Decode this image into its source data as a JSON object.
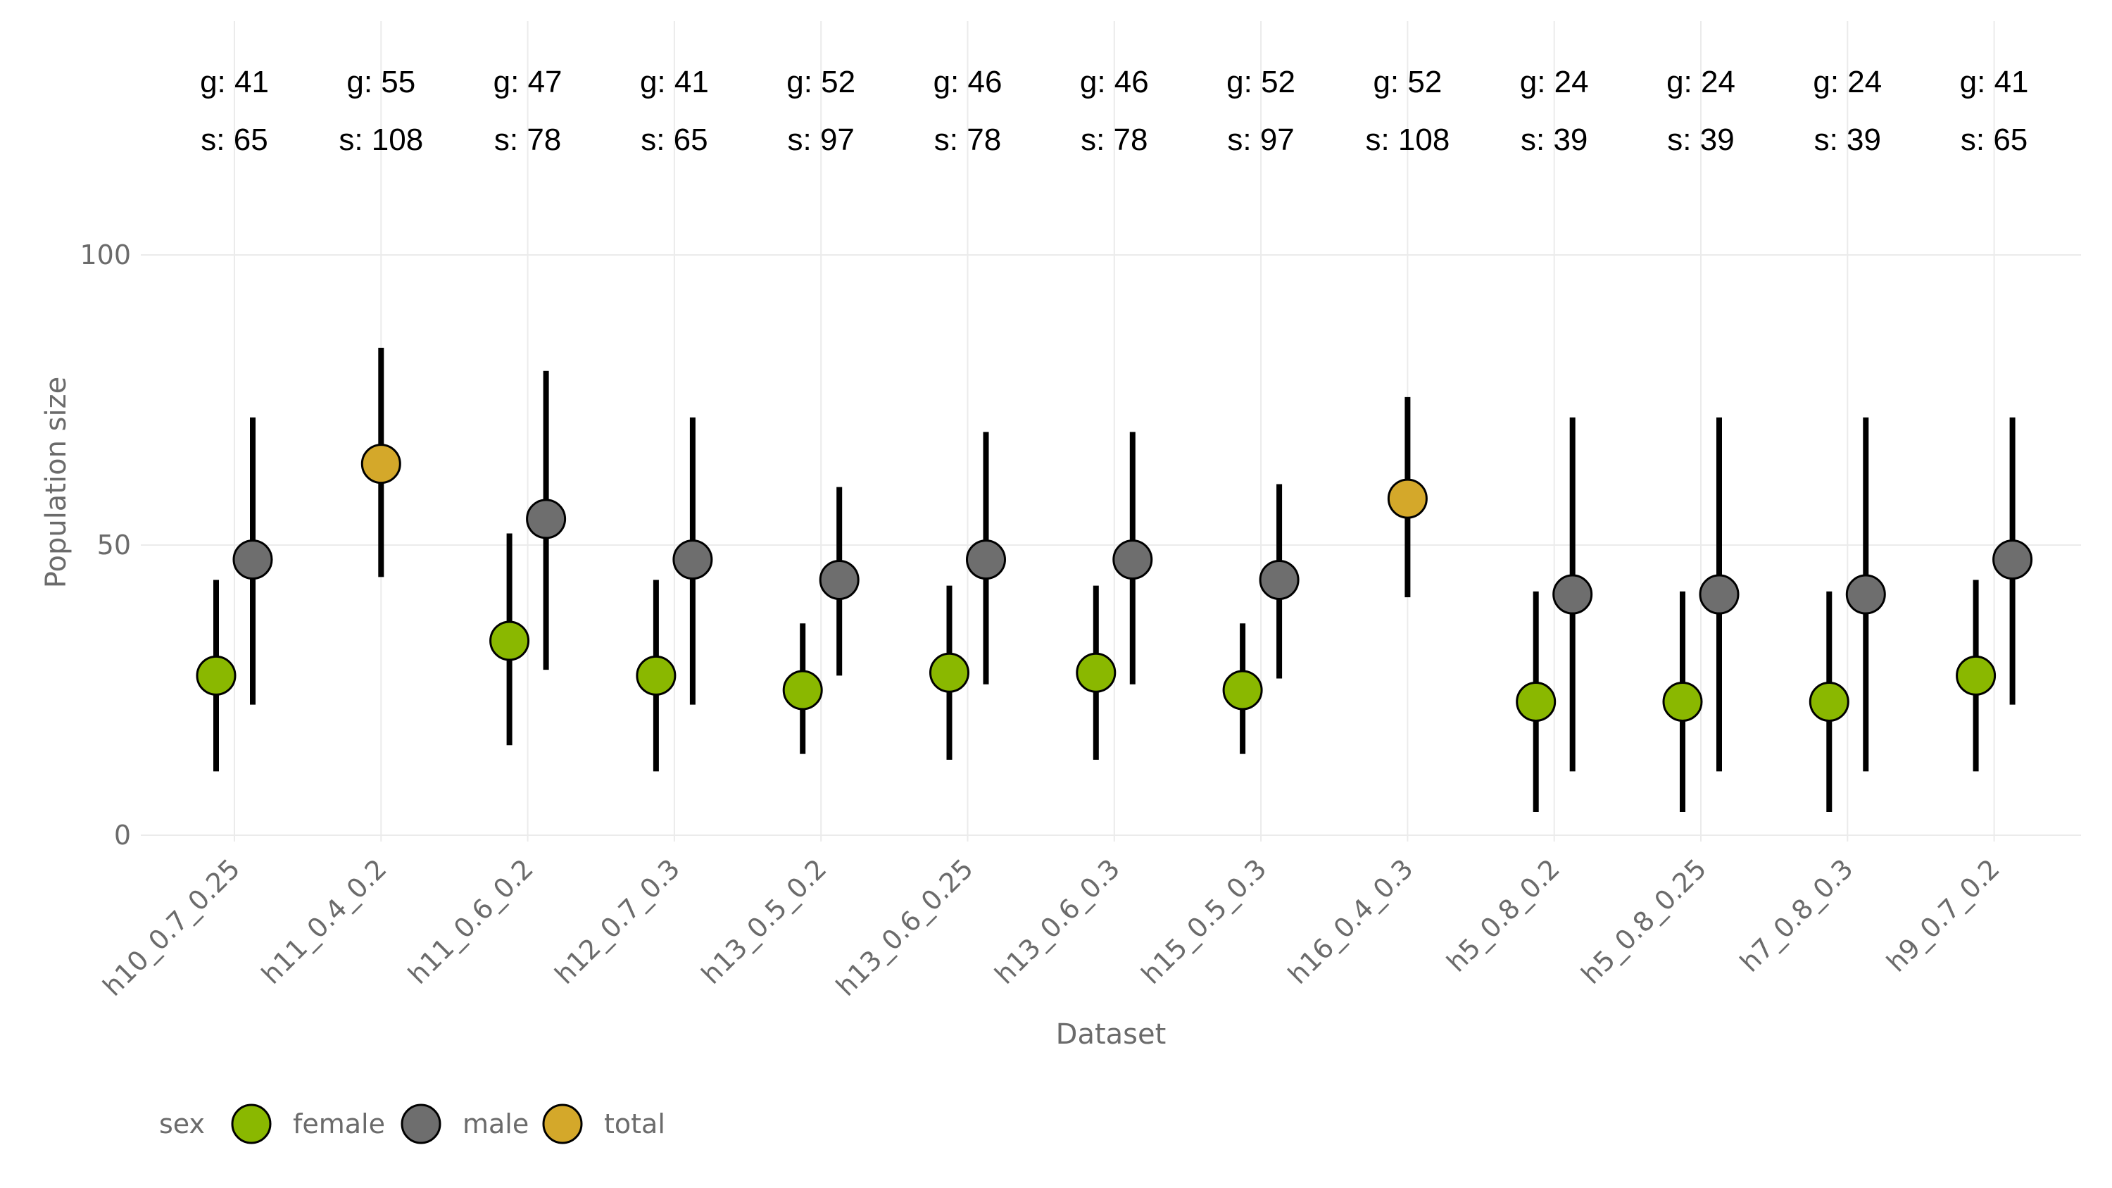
{
  "chart_data": {
    "type": "scatter",
    "title": "",
    "xlabel": "Dataset",
    "ylabel": "Population size",
    "ylim": [
      0,
      100
    ],
    "yticks": [
      0,
      50,
      100
    ],
    "grid": true,
    "legend": {
      "position": "bottom-left",
      "title": "sex",
      "entries": [
        {
          "name": "female",
          "color": "#8ab800"
        },
        {
          "name": "male",
          "color": "#6e6e6e"
        },
        {
          "name": "total",
          "color": "#d4a82a"
        }
      ]
    },
    "categories": [
      "h10_0.7_0.25",
      "h11_0.4_0.2",
      "h11_0.6_0.2",
      "h12_0.7_0.3",
      "h13_0.5_0.2",
      "h13_0.6_0.25",
      "h13_0.6_0.3",
      "h15_0.5_0.3",
      "h16_0.4_0.3",
      "h5_0.8_0.2",
      "h5_0.8_0.25",
      "h7_0.8_0.3",
      "h9_0.7_0.2"
    ],
    "annotations_g": [
      "g: 41",
      "g: 55",
      "g: 47",
      "g: 41",
      "g: 52",
      "g: 46",
      "g: 46",
      "g: 52",
      "g: 52",
      "g: 24",
      "g: 24",
      "g: 24",
      "g: 41"
    ],
    "annotations_s": [
      "s: 65",
      "s: 108",
      "s: 78",
      "s: 65",
      "s: 97",
      "s: 78",
      "s: 78",
      "s: 97",
      "s: 108",
      "s: 39",
      "s: 39",
      "s: 39",
      "s: 65"
    ],
    "series": [
      {
        "name": "female",
        "color": "#8ab800",
        "values": [
          27.5,
          null,
          33.5,
          27.5,
          25,
          28,
          28,
          25,
          null,
          23,
          23,
          23,
          27.5
        ],
        "lower": [
          11,
          null,
          15.5,
          11,
          14,
          13,
          13,
          14,
          null,
          4,
          4,
          4,
          11
        ],
        "upper": [
          44,
          null,
          52,
          44,
          36.5,
          43,
          43,
          36.5,
          null,
          42,
          42,
          42,
          44
        ]
      },
      {
        "name": "male",
        "color": "#6e6e6e",
        "values": [
          47.5,
          null,
          54.5,
          47.5,
          44,
          47.5,
          47.5,
          44,
          null,
          41.5,
          41.5,
          41.5,
          47.5
        ],
        "lower": [
          22.5,
          null,
          28.5,
          22.5,
          27.5,
          26,
          26,
          27,
          null,
          11,
          11,
          11,
          22.5
        ],
        "upper": [
          72,
          null,
          80,
          72,
          60,
          69.5,
          69.5,
          60.5,
          null,
          72,
          72,
          72,
          72
        ]
      },
      {
        "name": "total",
        "color": "#d4a82a",
        "values": [
          null,
          64,
          null,
          null,
          null,
          null,
          null,
          null,
          58,
          null,
          null,
          null,
          null
        ],
        "lower": [
          null,
          44.5,
          null,
          null,
          null,
          null,
          null,
          null,
          41,
          null,
          null,
          null,
          null
        ],
        "upper": [
          null,
          84,
          null,
          null,
          null,
          null,
          null,
          null,
          75.5,
          null,
          null,
          null,
          null
        ]
      }
    ]
  }
}
